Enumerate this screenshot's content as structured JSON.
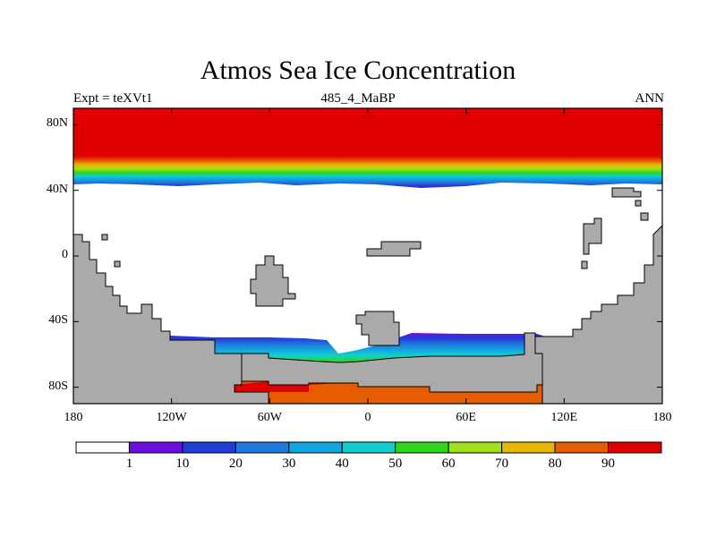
{
  "title": "Atmos Sea Ice Concentration",
  "left_string": "Expt = teXVt1",
  "center_string": "485_4_MaBP",
  "right_string": "ANN",
  "lat_ticks": [
    "80N",
    "40N",
    "0",
    "40S",
    "80S"
  ],
  "lat_values": [
    80,
    40,
    0,
    -40,
    -80
  ],
  "lon_ticks": [
    "180",
    "120W",
    "60W",
    "0",
    "60E",
    "120E",
    "180"
  ],
  "lon_values": [
    -180,
    -120,
    -60,
    0,
    60,
    120,
    180
  ],
  "colorbar": {
    "labels": [
      "1",
      "10",
      "20",
      "30",
      "40",
      "50",
      "60",
      "70",
      "80",
      "90"
    ],
    "colors": [
      "#ffffff",
      "#6a0fe0",
      "#1f3ed6",
      "#1f78de",
      "#12a6e0",
      "#12cfcf",
      "#2bd61c",
      "#a3e01c",
      "#e6b800",
      "#e65c00",
      "#e00000"
    ]
  },
  "land_color": "#aaaaaa",
  "chart_data": {
    "type": "map",
    "title": "Atmos Sea Ice Concentration",
    "variable": "sea ice concentration (%)",
    "levels": [
      1,
      10,
      20,
      30,
      40,
      50,
      60,
      70,
      80,
      90
    ],
    "lon_range": [
      -180,
      180
    ],
    "lat_range": [
      -90,
      90
    ],
    "north_band_profile": [
      {
        "lat": 90,
        "value": 95
      },
      {
        "lat": 60,
        "value": 92
      },
      {
        "lat": 58,
        "value": 85
      },
      {
        "lat": 56,
        "value": 75
      },
      {
        "lat": 54,
        "value": 65
      },
      {
        "lat": 52,
        "value": 55
      },
      {
        "lat": 50,
        "value": 45
      },
      {
        "lat": 48,
        "value": 35
      },
      {
        "lat": 46,
        "value": 25
      },
      {
        "lat": 44,
        "value": 15
      },
      {
        "lat": 42,
        "value": 5
      }
    ]
  }
}
